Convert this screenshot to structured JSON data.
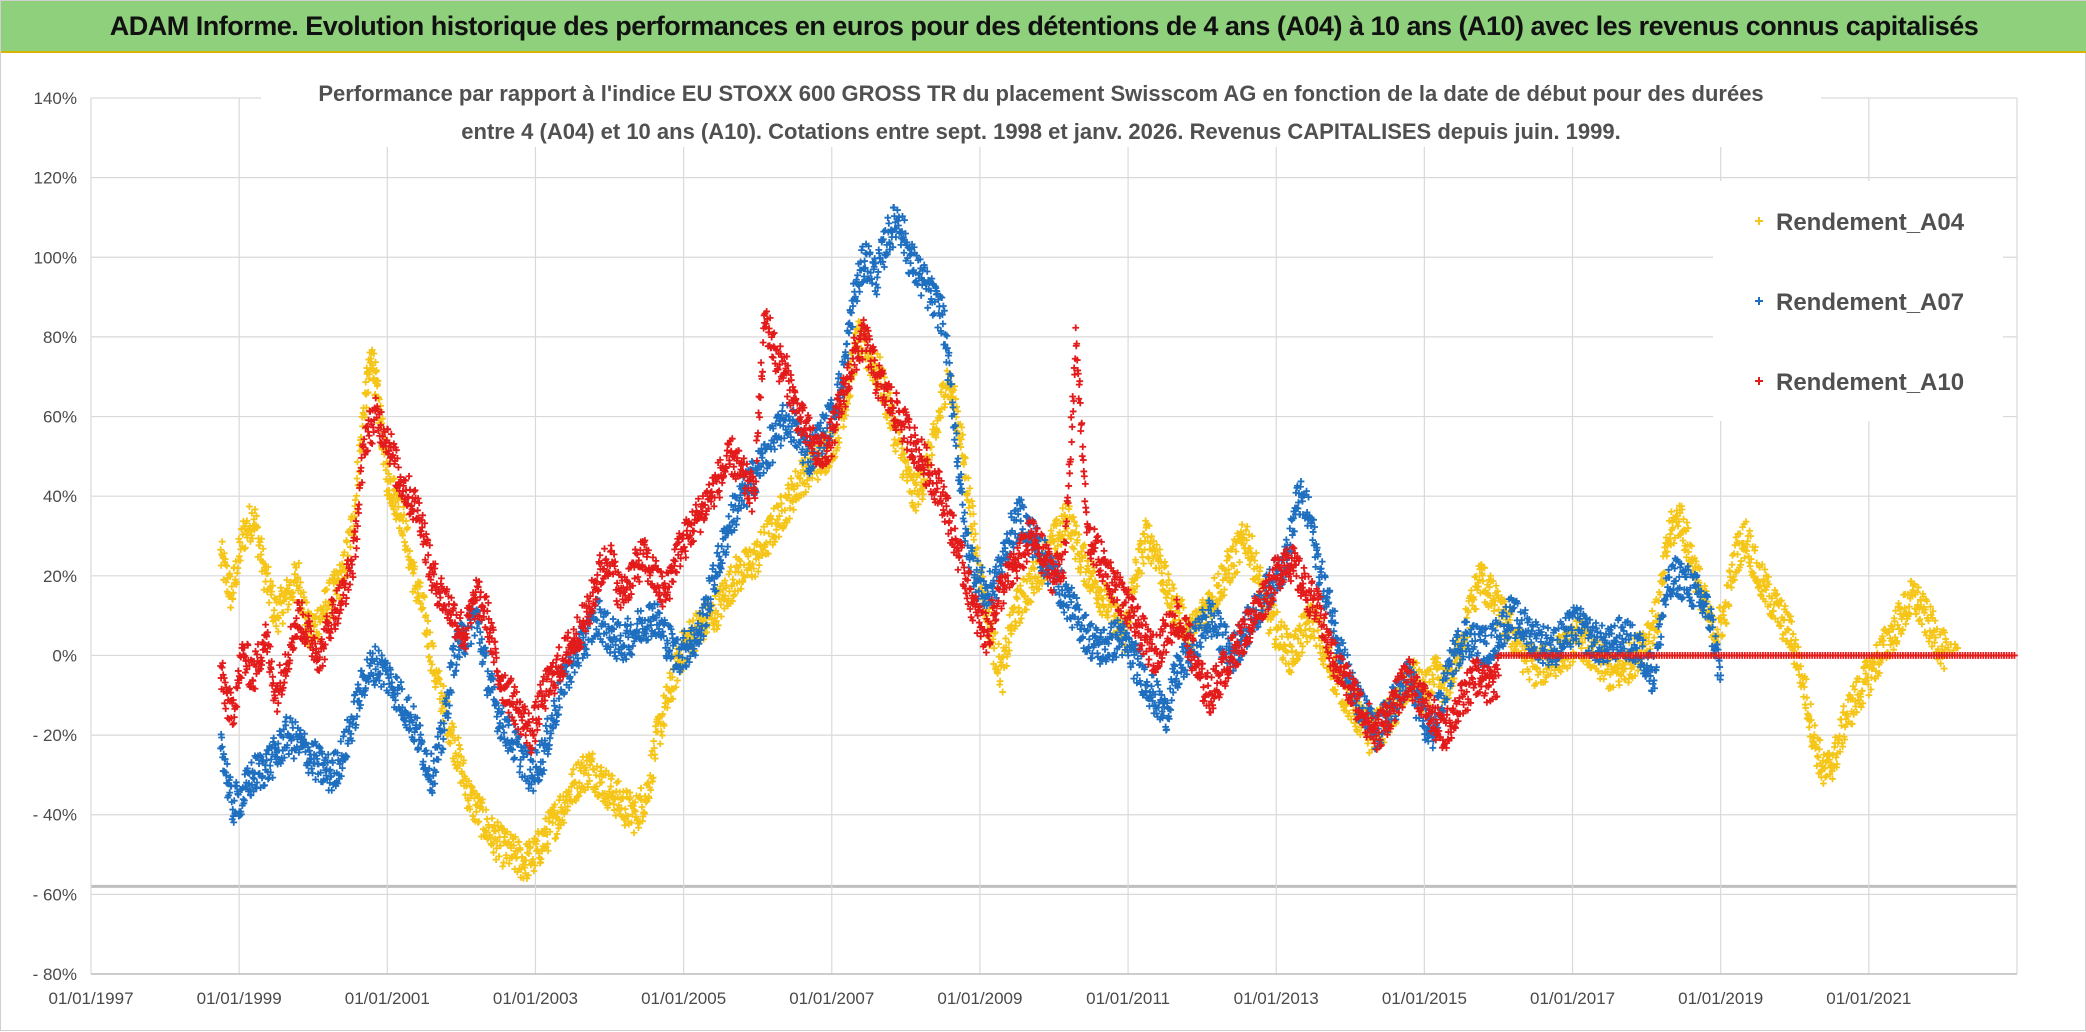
{
  "header": {
    "title": "ADAM Informe. Evolution historique des performances en euros pour des détentions de 4 ans (A04) à 10 ans (A10) avec les revenus connus capitalisés"
  },
  "chart_data": {
    "type": "scatter",
    "subtitle_line1": "Performance par rapport à l'indice EU STOXX 600 GROSS TR  du placement Swisscom AG en fonction de la date de début pour des durées",
    "subtitle_line2": "entre 4 (A04) et 10 ans (A10). Cotations entre sept. 1998 et janv. 2026. Revenus CAPITALISES depuis juin. 1999.",
    "xlabel": "",
    "ylabel": "",
    "xlim": [
      1997.0,
      2023.0
    ],
    "ylim": [
      -80,
      140
    ],
    "y_ticks": [
      140,
      120,
      100,
      80,
      60,
      40,
      20,
      0,
      -20,
      -40,
      -60,
      -80
    ],
    "y_tick_labels": [
      "140%",
      "120%",
      "100%",
      "80%",
      "60%",
      "40%",
      "20%",
      "0%",
      "- 20%",
      "- 40%",
      "- 60%",
      "- 80%"
    ],
    "x_ticks": [
      1997,
      1999,
      2001,
      2003,
      2005,
      2007,
      2009,
      2011,
      2013,
      2015,
      2017,
      2019,
      2021
    ],
    "x_tick_labels": [
      "01/01/1997",
      "01/01/1999",
      "01/01/2001",
      "01/01/2003",
      "01/01/2005",
      "01/01/2007",
      "01/01/2009",
      "01/01/2011",
      "01/01/2013",
      "01/01/2015",
      "01/01/2017",
      "01/01/2019",
      "01/01/2021"
    ],
    "grid": true,
    "legend_position": "top-right",
    "series": [
      {
        "name": "Rendement_A04",
        "color": "#f5c518",
        "marker": "+",
        "x": [
          1998.75,
          1998.9,
          1999.05,
          1999.2,
          1999.35,
          1999.5,
          1999.65,
          1999.8,
          1999.95,
          2000.1,
          2000.25,
          2000.4,
          2000.55,
          2000.7,
          2000.8,
          2000.9,
          2001.0,
          2001.1,
          2001.2,
          2001.35,
          2001.5,
          2001.65,
          2001.8,
          2001.95,
          2002.1,
          2002.25,
          2002.4,
          2002.55,
          2002.7,
          2002.85,
          2003.0,
          2003.15,
          2003.3,
          2003.45,
          2003.6,
          2003.75,
          2003.9,
          2004.05,
          2004.2,
          2004.35,
          2004.5,
          2004.65,
          2004.8,
          2004.95,
          2005.1,
          2005.25,
          2005.4,
          2005.55,
          2005.7,
          2005.85,
          2006.0,
          2006.15,
          2006.3,
          2006.45,
          2006.6,
          2006.75,
          2006.9,
          2007.05,
          2007.2,
          2007.35,
          2007.5,
          2007.65,
          2007.8,
          2007.95,
          2008.1,
          2008.25,
          2008.4,
          2008.55,
          2008.7,
          2008.85,
          2009.0,
          2009.15,
          2009.3,
          2009.45,
          2009.6,
          2009.75,
          2009.9,
          2010.05,
          2010.2,
          2010.35,
          2010.5,
          2010.65,
          2010.8,
          2010.95,
          2011.1,
          2011.25,
          2011.4,
          2011.55,
          2011.7,
          2011.85,
          2012.0,
          2012.15,
          2012.3,
          2012.45,
          2012.6,
          2012.75,
          2012.9,
          2013.05,
          2013.2,
          2013.35,
          2013.5,
          2013.65,
          2013.8,
          2013.95,
          2014.1,
          2014.25,
          2014.4,
          2014.55,
          2014.7,
          2014.85,
          2015.0,
          2015.15,
          2015.3,
          2015.45,
          2015.6,
          2015.75,
          2015.9,
          2016.05,
          2016.2,
          2016.35,
          2016.5,
          2016.65,
          2016.8,
          2016.95,
          2017.1,
          2017.25,
          2017.4,
          2017.55,
          2017.7,
          2017.85,
          2018.0,
          2018.15,
          2018.3,
          2018.45,
          2018.6,
          2018.75,
          2018.9,
          2019.05,
          2019.2,
          2019.35,
          2019.5,
          2019.65,
          2019.8,
          2019.95,
          2020.1,
          2020.25,
          2020.4,
          2020.55,
          2020.7,
          2020.85,
          2021.0,
          2021.15,
          2021.3,
          2021.45,
          2021.6,
          2021.75,
          2021.9,
          2022.05
        ],
        "y": [
          25,
          15,
          30,
          35,
          20,
          10,
          15,
          20,
          5,
          10,
          15,
          20,
          35,
          65,
          75,
          60,
          45,
          40,
          35,
          20,
          10,
          -5,
          -15,
          -25,
          -35,
          -40,
          -45,
          -48,
          -50,
          -52,
          -50,
          -45,
          -40,
          -35,
          -30,
          -28,
          -32,
          -35,
          -38,
          -40,
          -35,
          -20,
          -10,
          0,
          5,
          8,
          10,
          15,
          20,
          22,
          25,
          30,
          35,
          40,
          45,
          48,
          50,
          55,
          65,
          80,
          75,
          70,
          60,
          50,
          40,
          45,
          55,
          70,
          60,
          40,
          20,
          5,
          -5,
          10,
          15,
          20,
          25,
          30,
          35,
          25,
          20,
          15,
          10,
          5,
          20,
          30,
          25,
          15,
          10,
          5,
          10,
          15,
          20,
          25,
          30,
          20,
          10,
          5,
          0,
          5,
          10,
          0,
          -5,
          -10,
          -15,
          -20,
          -18,
          -15,
          -10,
          -5,
          -10,
          -5,
          -8,
          0,
          10,
          20,
          15,
          10,
          5,
          0,
          -3,
          -2,
          0,
          2,
          5,
          0,
          -2,
          -5,
          -3,
          0,
          5,
          10,
          30,
          35,
          25,
          15,
          5,
          10,
          25,
          30,
          20,
          15,
          10,
          5,
          -5,
          -20,
          -30,
          -25,
          -15,
          -10,
          -5,
          0,
          5,
          10,
          15,
          10,
          5,
          0
        ],
        "x_end": 2022.2
      },
      {
        "name": "Rendement_A07",
        "color": "#1f6fc0",
        "marker": "+",
        "x": [
          1998.75,
          1998.9,
          1999.05,
          1999.2,
          1999.35,
          1999.5,
          1999.65,
          1999.8,
          1999.95,
          2000.1,
          2000.25,
          2000.4,
          2000.55,
          2000.7,
          2000.85,
          2001.0,
          2001.15,
          2001.3,
          2001.45,
          2001.6,
          2001.75,
          2001.9,
          2002.05,
          2002.2,
          2002.35,
          2002.5,
          2002.65,
          2002.8,
          2002.95,
          2003.1,
          2003.25,
          2003.4,
          2003.55,
          2003.7,
          2003.85,
          2004.0,
          2004.15,
          2004.3,
          2004.45,
          2004.6,
          2004.75,
          2004.9,
          2005.05,
          2005.2,
          2005.35,
          2005.5,
          2005.65,
          2005.8,
          2005.95,
          2006.1,
          2006.25,
          2006.4,
          2006.55,
          2006.7,
          2006.85,
          2007.0,
          2007.15,
          2007.3,
          2007.45,
          2007.6,
          2007.75,
          2007.9,
          2008.05,
          2008.2,
          2008.35,
          2008.5,
          2008.65,
          2008.8,
          2008.95,
          2009.1,
          2009.25,
          2009.4,
          2009.55,
          2009.7,
          2009.85,
          2010.0,
          2010.15,
          2010.3,
          2010.45,
          2010.6,
          2010.75,
          2010.9,
          2011.05,
          2011.2,
          2011.35,
          2011.5,
          2011.65,
          2011.8,
          2011.95,
          2012.1,
          2012.25,
          2012.4,
          2012.55,
          2012.7,
          2012.85,
          2013.0,
          2013.15,
          2013.3,
          2013.45,
          2013.6,
          2013.75,
          2013.9,
          2014.05,
          2014.2,
          2014.35,
          2014.5,
          2014.65,
          2014.8,
          2014.95,
          2015.1,
          2015.25,
          2015.4,
          2015.55,
          2015.7,
          2015.85,
          2016.0,
          2016.15,
          2016.3,
          2016.45,
          2016.6,
          2016.75,
          2016.9,
          2017.05,
          2017.2,
          2017.35,
          2017.5,
          2017.65,
          2017.8,
          2017.95,
          2018.1,
          2018.25,
          2018.4,
          2018.55,
          2018.7,
          2018.85,
          2019.0
        ],
        "y": [
          -20,
          -38,
          -35,
          -30,
          -28,
          -25,
          -20,
          -22,
          -25,
          -28,
          -30,
          -25,
          -15,
          -5,
          -2,
          -5,
          -10,
          -15,
          -22,
          -30,
          -20,
          0,
          5,
          10,
          -5,
          -15,
          -20,
          -25,
          -30,
          -25,
          -15,
          -5,
          0,
          5,
          10,
          5,
          3,
          5,
          8,
          10,
          5,
          0,
          2,
          5,
          15,
          25,
          35,
          40,
          45,
          50,
          55,
          60,
          55,
          50,
          55,
          60,
          70,
          90,
          100,
          95,
          105,
          110,
          100,
          95,
          90,
          85,
          60,
          30,
          20,
          15,
          20,
          30,
          35,
          30,
          25,
          20,
          15,
          10,
          5,
          2,
          3,
          5,
          0,
          -5,
          -10,
          -15,
          -5,
          0,
          5,
          10,
          5,
          0,
          5,
          10,
          15,
          20,
          25,
          40,
          35,
          20,
          10,
          0,
          -10,
          -15,
          -20,
          -15,
          -10,
          -5,
          -15,
          -20,
          -10,
          0,
          5,
          3,
          2,
          5,
          10,
          8,
          5,
          3,
          2,
          5,
          8,
          5,
          3,
          2,
          5,
          3,
          0,
          -5,
          15,
          20,
          18,
          15,
          10,
          -5
        ]
      },
      {
        "name": "Rendement_A10",
        "color": "#e31b1b",
        "marker": "+",
        "x": [
          1998.75,
          1998.9,
          1999.05,
          1999.2,
          1999.35,
          1999.5,
          1999.65,
          1999.8,
          1999.95,
          2000.1,
          2000.25,
          2000.4,
          2000.55,
          2000.7,
          2000.85,
          2001.0,
          2001.15,
          2001.3,
          2001.45,
          2001.6,
          2001.75,
          2001.9,
          2002.05,
          2002.2,
          2002.35,
          2002.5,
          2002.65,
          2002.8,
          2002.95,
          2003.1,
          2003.25,
          2003.4,
          2003.55,
          2003.7,
          2003.85,
          2004.0,
          2004.15,
          2004.3,
          2004.45,
          2004.6,
          2004.75,
          2004.9,
          2005.05,
          2005.2,
          2005.35,
          2005.5,
          2005.65,
          2005.8,
          2005.95,
          2006.1,
          2006.25,
          2006.4,
          2006.55,
          2006.7,
          2006.85,
          2007.0,
          2007.15,
          2007.3,
          2007.45,
          2007.6,
          2007.75,
          2007.9,
          2008.05,
          2008.2,
          2008.35,
          2008.5,
          2008.65,
          2008.8,
          2008.95,
          2009.1,
          2009.25,
          2009.4,
          2009.55,
          2009.7,
          2009.85,
          2010.0,
          2010.15,
          2010.3,
          2010.45,
          2010.6,
          2010.75,
          2010.9,
          2011.05,
          2011.2,
          2011.35,
          2011.5,
          2011.65,
          2011.8,
          2011.95,
          2012.1,
          2012.25,
          2012.4,
          2012.55,
          2012.7,
          2012.85,
          2013.0,
          2013.15,
          2013.3,
          2013.45,
          2013.6,
          2013.75,
          2013.9,
          2014.05,
          2014.2,
          2014.35,
          2014.5,
          2014.65,
          2014.8,
          2014.95,
          2015.1,
          2015.25,
          2015.4,
          2015.55,
          2015.7,
          2015.85,
          2016.0
        ],
        "y": [
          -5,
          -15,
          0,
          -5,
          5,
          -10,
          0,
          10,
          5,
          0,
          10,
          15,
          25,
          55,
          60,
          55,
          45,
          40,
          35,
          20,
          15,
          10,
          5,
          15,
          10,
          -5,
          -10,
          -15,
          -20,
          -10,
          -5,
          0,
          5,
          10,
          20,
          25,
          15,
          20,
          25,
          20,
          15,
          25,
          30,
          35,
          40,
          45,
          50,
          45,
          40,
          85,
          75,
          70,
          60,
          55,
          50,
          55,
          65,
          75,
          80,
          70,
          65,
          60,
          55,
          50,
          45,
          40,
          30,
          20,
          10,
          5,
          15,
          20,
          25,
          30,
          25,
          20,
          25,
          80,
          30,
          25,
          20,
          15,
          10,
          5,
          0,
          5,
          10,
          5,
          -5,
          -10,
          -5,
          0,
          5,
          10,
          15,
          20,
          25,
          20,
          15,
          10,
          0,
          -5,
          -10,
          -15,
          -20,
          -15,
          -10,
          -5,
          -10,
          -15,
          -20,
          -15,
          -10,
          -5,
          -8,
          -5
        ],
        "flat_x_start": 2016.0,
        "flat_x_end": 2023.0,
        "flat_value": 0
      }
    ]
  }
}
